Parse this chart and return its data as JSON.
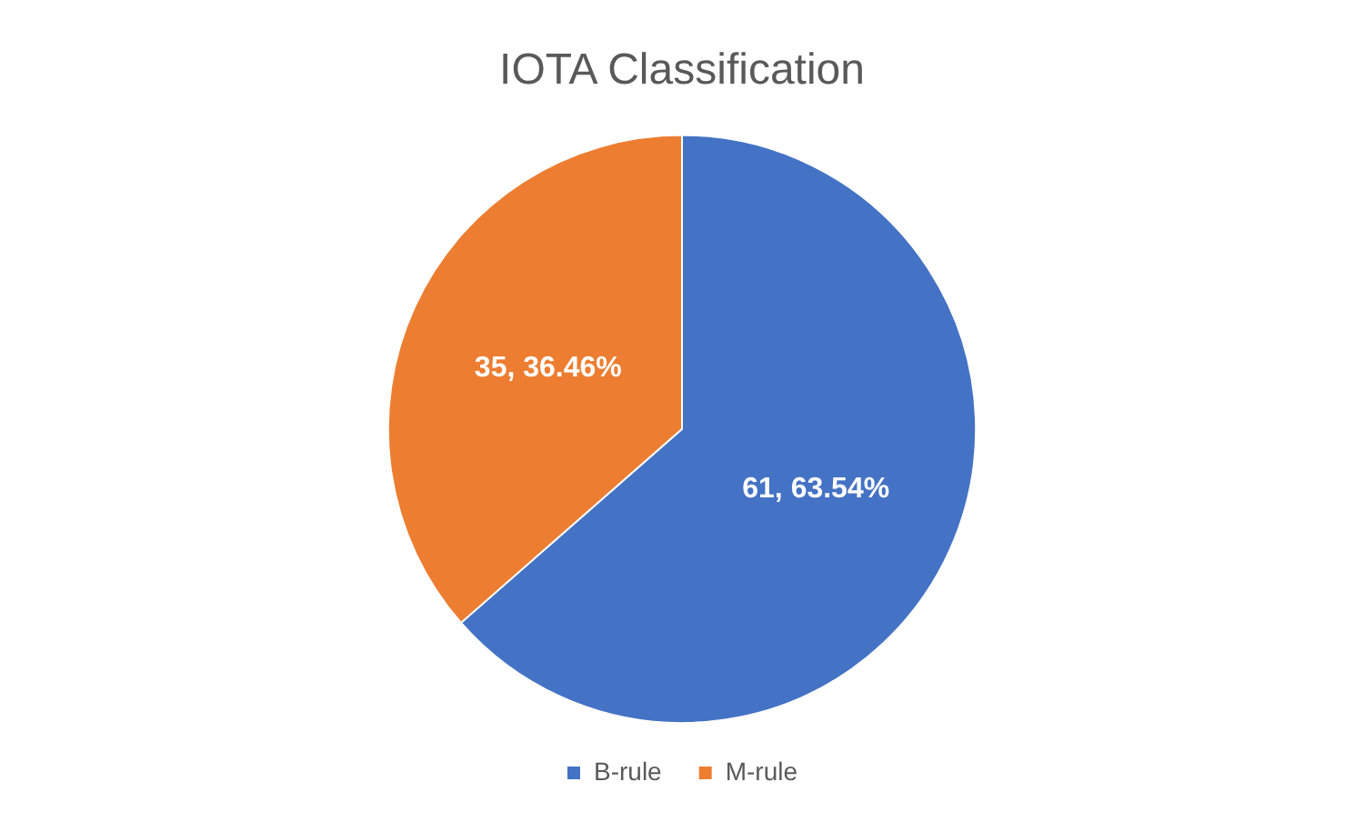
{
  "chart_data": {
    "type": "pie",
    "title": "IOTA Classification",
    "categories": [
      "B-rule",
      "M-rule"
    ],
    "values": [
      61,
      35
    ],
    "colors": [
      "#4472c4",
      "#ed7d31"
    ],
    "value_labels": [
      "61, 63.54%",
      "35, 36.46%"
    ],
    "legend": "bottom"
  }
}
